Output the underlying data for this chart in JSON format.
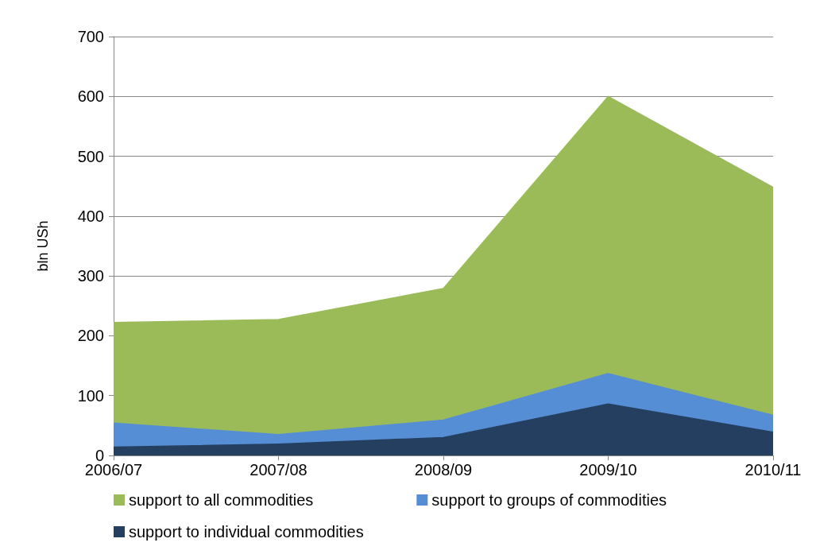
{
  "chart_data": {
    "type": "area",
    "stacked": true,
    "ylabel": "bln USh",
    "categories": [
      "2006/07",
      "2007/08",
      "2008/09",
      "2009/10",
      "2010/11"
    ],
    "series": [
      {
        "name": "support to individual commodities",
        "color": "#243f60",
        "values": [
          14,
          19,
          30,
          86,
          39
        ]
      },
      {
        "name": "support to groups of commodities",
        "color": "#558ed5",
        "values": [
          40,
          16,
          29,
          51,
          28
        ]
      },
      {
        "name": "support to all commodities",
        "color": "#9bbb59",
        "values": [
          168,
          192,
          220,
          463,
          381
        ]
      }
    ],
    "ylim": [
      0,
      700
    ],
    "yticks": [
      0,
      100,
      200,
      300,
      400,
      500,
      600,
      700
    ],
    "grid": "y",
    "legend": "bottom"
  }
}
